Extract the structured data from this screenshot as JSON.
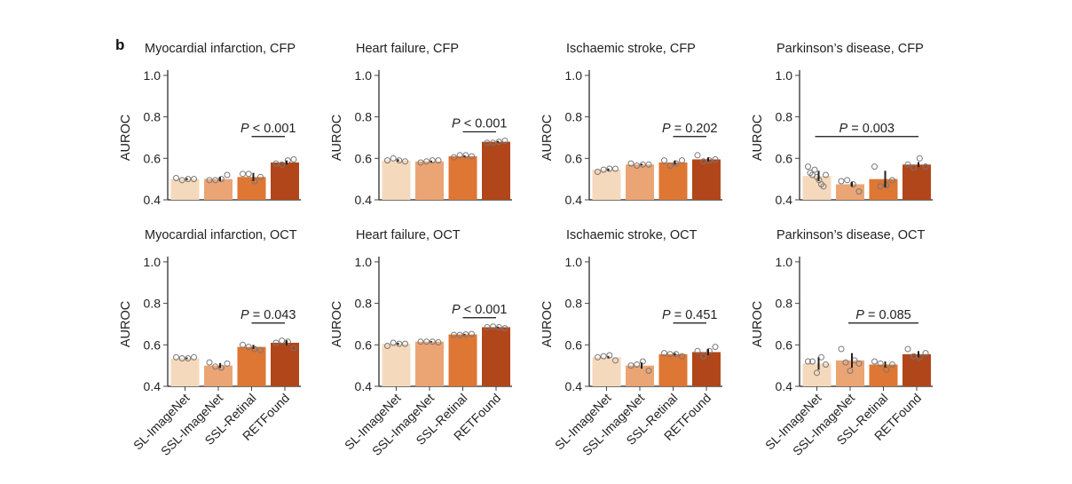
{
  "panel_letter": "b",
  "colors": {
    "SL-ImageNet": "#F5D9BC",
    "SSL-ImageNet": "#EBA574",
    "SSL-Retinal": "#DE7634",
    "RETFound": "#B1461A",
    "axis": "#777777",
    "text": "#222222"
  },
  "chart_data": [
    {
      "type": "bar",
      "title": "Myocardial infarction, CFP",
      "ylabel": "AUROC",
      "xlabel": "",
      "ylim": [
        0.4,
        1.0
      ],
      "yticks": [
        "0.4",
        "0.6",
        "0.8",
        "1.0"
      ],
      "categories": [
        "SL-ImageNet",
        "SSL-ImageNet",
        "SSL-Retinal",
        "RETFound"
      ],
      "values": [
        0.5,
        0.5,
        0.51,
        0.58
      ],
      "errors": [
        0.005,
        0.01,
        0.02,
        0.01
      ],
      "points": [
        [
          0.505,
          0.495,
          0.5,
          0.5
        ],
        [
          0.495,
          0.495,
          0.5,
          0.52
        ],
        [
          0.525,
          0.525,
          0.49,
          0.51
        ],
        [
          0.575,
          0.57,
          0.59,
          0.595
        ]
      ],
      "annotation": {
        "p_prefix": "P",
        "p_rest": " < 0.001",
        "from": 2,
        "to": 3
      }
    },
    {
      "type": "bar",
      "title": "Heart failure, CFP",
      "ylabel": "AUROC",
      "xlabel": "",
      "ylim": [
        0.4,
        1.0
      ],
      "yticks": [
        "0.4",
        "0.6",
        "0.8",
        "1.0"
      ],
      "categories": [
        "SL-ImageNet",
        "SSL-ImageNet",
        "SSL-Retinal",
        "RETFound"
      ],
      "values": [
        0.59,
        0.585,
        0.61,
        0.68
      ],
      "errors": [
        0.006,
        0.004,
        0.004,
        0.004
      ],
      "points": [
        [
          0.59,
          0.6,
          0.59,
          0.585
        ],
        [
          0.58,
          0.585,
          0.59,
          0.59
        ],
        [
          0.605,
          0.615,
          0.615,
          0.61
        ],
        [
          0.675,
          0.675,
          0.68,
          0.685
        ]
      ],
      "annotation": {
        "p_prefix": "P",
        "p_rest": " < 0.001",
        "from": 2,
        "to": 3
      }
    },
    {
      "type": "bar",
      "title": "Ischaemic stroke, CFP",
      "ylabel": "AUROC",
      "xlabel": "",
      "ylim": [
        0.4,
        1.0
      ],
      "yticks": [
        "0.4",
        "0.6",
        "0.8",
        "1.0"
      ],
      "categories": [
        "SL-ImageNet",
        "SSL-ImageNet",
        "SSL-Retinal",
        "RETFound"
      ],
      "values": [
        0.545,
        0.57,
        0.58,
        0.595
      ],
      "errors": [
        0.006,
        0.004,
        0.01,
        0.01
      ],
      "points": [
        [
          0.535,
          0.545,
          0.55,
          0.55
        ],
        [
          0.575,
          0.565,
          0.57,
          0.57
        ],
        [
          0.59,
          0.565,
          0.575,
          0.59
        ],
        [
          0.615,
          0.585,
          0.59,
          0.595
        ]
      ],
      "annotation": {
        "p_prefix": "P",
        "p_rest": " = 0.202",
        "from": 2,
        "to": 3
      }
    },
    {
      "type": "bar",
      "title": "Parkinson’s disease, CFP",
      "ylabel": "AUROC",
      "xlabel": "",
      "ylim": [
        0.4,
        1.0
      ],
      "yticks": [
        "0.4",
        "0.6",
        "0.8",
        "1.0"
      ],
      "categories": [
        "SL-ImageNet",
        "SSL-ImageNet",
        "SSL-Retinal",
        "RETFound"
      ],
      "values": [
        0.515,
        0.475,
        0.5,
        0.57
      ],
      "errors": [
        0.025,
        0.012,
        0.04,
        0.012
      ],
      "points": [
        [
          0.56,
          0.53,
          0.52,
          0.545,
          0.51,
          0.495,
          0.475,
          0.465,
          0.52
        ],
        [
          0.49,
          0.495,
          0.475,
          0.44
        ],
        [
          0.56,
          0.465,
          0.47,
          0.495
        ],
        [
          0.57,
          0.555,
          0.6,
          0.56
        ]
      ],
      "annotation": {
        "p_prefix": "P",
        "p_rest": " = 0.003",
        "from": 0,
        "to": 3
      }
    },
    {
      "type": "bar",
      "title": "Myocardial infarction, OCT",
      "ylabel": "AUROC",
      "xlabel": "",
      "ylim": [
        0.4,
        1.0
      ],
      "yticks": [
        "0.4",
        "0.6",
        "0.8",
        "1.0"
      ],
      "categories": [
        "SL-ImageNet",
        "SSL-ImageNet",
        "SSL-Retinal",
        "RETFound"
      ],
      "values": [
        0.535,
        0.5,
        0.59,
        0.61
      ],
      "errors": [
        0.004,
        0.012,
        0.01,
        0.012
      ],
      "points": [
        [
          0.54,
          0.535,
          0.535,
          0.54
        ],
        [
          0.515,
          0.495,
          0.49,
          0.51
        ],
        [
          0.6,
          0.59,
          0.58,
          0.575
        ],
        [
          0.61,
          0.62,
          0.615,
          0.585
        ]
      ],
      "annotation": {
        "p_prefix": "P",
        "p_rest": " = 0.043",
        "from": 2,
        "to": 3
      }
    },
    {
      "type": "bar",
      "title": "Heart failure, OCT",
      "ylabel": "AUROC",
      "xlabel": "",
      "ylim": [
        0.4,
        1.0
      ],
      "yticks": [
        "0.4",
        "0.6",
        "0.8",
        "1.0"
      ],
      "categories": [
        "SL-ImageNet",
        "SSL-ImageNet",
        "SSL-Retinal",
        "RETFound"
      ],
      "values": [
        0.605,
        0.615,
        0.65,
        0.685
      ],
      "errors": [
        0.005,
        0.003,
        0.003,
        0.003
      ],
      "points": [
        [
          0.595,
          0.61,
          0.605,
          0.605
        ],
        [
          0.615,
          0.615,
          0.615,
          0.612
        ],
        [
          0.648,
          0.648,
          0.65,
          0.652
        ],
        [
          0.685,
          0.688,
          0.685,
          0.68
        ]
      ],
      "annotation": {
        "p_prefix": "P",
        "p_rest": " < 0.001",
        "from": 2,
        "to": 3
      }
    },
    {
      "type": "bar",
      "title": "Ischaemic stroke, OCT",
      "ylabel": "AUROC",
      "xlabel": "",
      "ylim": [
        0.4,
        1.0
      ],
      "yticks": [
        "0.4",
        "0.6",
        "0.8",
        "1.0"
      ],
      "categories": [
        "SL-ImageNet",
        "SSL-ImageNet",
        "SSL-Retinal",
        "RETFound"
      ],
      "values": [
        0.54,
        0.5,
        0.555,
        0.565
      ],
      "errors": [
        0.006,
        0.015,
        0.006,
        0.015
      ],
      "points": [
        [
          0.54,
          0.545,
          0.55,
          0.525
        ],
        [
          0.5,
          0.505,
          0.52,
          0.475
        ],
        [
          0.56,
          0.555,
          0.555,
          0.545
        ],
        [
          0.57,
          0.545,
          0.57,
          0.59
        ]
      ],
      "annotation": {
        "p_prefix": "P",
        "p_rest": " = 0.451",
        "from": 2,
        "to": 3
      }
    },
    {
      "type": "bar",
      "title": "Parkinson’s disease, OCT",
      "ylabel": "AUROC",
      "xlabel": "",
      "ylim": [
        0.4,
        1.0
      ],
      "yticks": [
        "0.4",
        "0.6",
        "0.8",
        "1.0"
      ],
      "categories": [
        "SL-ImageNet",
        "SSL-ImageNet",
        "SSL-Retinal",
        "RETFound"
      ],
      "values": [
        0.51,
        0.525,
        0.505,
        0.555
      ],
      "errors": [
        0.03,
        0.035,
        0.015,
        0.015
      ],
      "points": [
        [
          0.52,
          0.52,
          0.465,
          0.54,
          0.505
        ],
        [
          0.58,
          0.515,
          0.475,
          0.525,
          0.51
        ],
        [
          0.52,
          0.51,
          0.48,
          0.505
        ],
        [
          0.58,
          0.545,
          0.54,
          0.56
        ]
      ],
      "annotation": {
        "p_prefix": "P",
        "p_rest": " = 0.085",
        "from": 1,
        "to": 3
      }
    }
  ]
}
